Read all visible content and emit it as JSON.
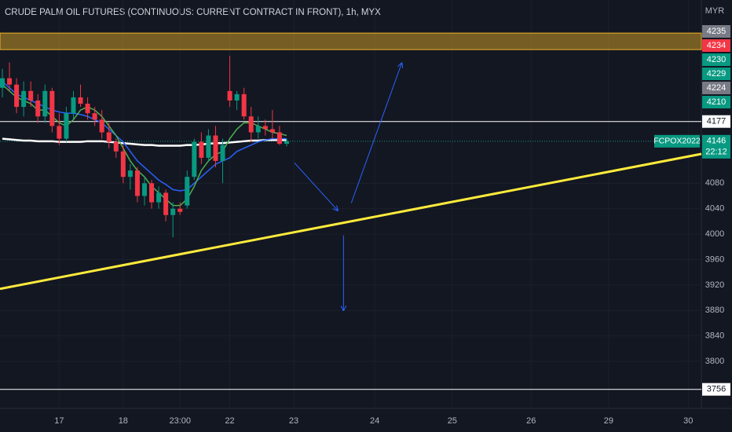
{
  "chart_data": {
    "type": "candlestick",
    "title": "CRUDE PALM OIL FUTURES (CONTINUOUS: CURRENT CONTRACT IN FRONT), 1h, MYX",
    "currency": "MYR",
    "symbol": "FCPOX2022",
    "countdown": "22:12",
    "x": [
      0,
      1,
      2,
      3,
      4,
      5,
      6,
      7,
      8,
      9,
      10,
      11,
      12,
      13,
      14,
      15,
      16,
      17,
      18,
      19,
      20,
      21,
      22,
      23,
      24,
      25,
      26,
      27,
      28,
      29,
      30,
      31,
      32,
      33,
      34,
      35,
      36,
      37,
      38,
      39,
      40
    ],
    "open": [
      4230,
      4245,
      4235,
      4200,
      4225,
      4210,
      4185,
      4225,
      4170,
      4150,
      4190,
      4215,
      4205,
      4190,
      4180,
      4160,
      4145,
      4130,
      4090,
      4100,
      4060,
      4080,
      4050,
      4065,
      4030,
      4040,
      4045,
      4090,
      4145,
      4120,
      4155,
      4115,
      4225,
      4210,
      4220,
      4185,
      4160,
      4170,
      4165,
      4160,
      4142
    ],
    "high": [
      4260,
      4270,
      4245,
      4240,
      4240,
      4220,
      4235,
      4230,
      4190,
      4200,
      4225,
      4235,
      4215,
      4200,
      4195,
      4175,
      4150,
      4140,
      4110,
      4105,
      4090,
      4085,
      4075,
      4070,
      4050,
      4050,
      4100,
      4150,
      4160,
      4165,
      4170,
      4150,
      4280,
      4225,
      4230,
      4200,
      4185,
      4180,
      4195,
      4170,
      4150
    ],
    "low": [
      4215,
      4225,
      4190,
      4185,
      4200,
      4175,
      4175,
      4160,
      4140,
      4145,
      4180,
      4200,
      4180,
      4170,
      4150,
      4135,
      4120,
      4080,
      4070,
      4050,
      4045,
      4040,
      4040,
      4020,
      3995,
      4030,
      4040,
      4085,
      4110,
      4115,
      4105,
      4080,
      4200,
      4195,
      4180,
      4145,
      4150,
      4155,
      4150,
      4140,
      4138
    ],
    "close": [
      4245,
      4235,
      4200,
      4225,
      4210,
      4185,
      4225,
      4170,
      4150,
      4190,
      4215,
      4205,
      4190,
      4180,
      4160,
      4145,
      4130,
      4090,
      4100,
      4060,
      4080,
      4050,
      4065,
      4030,
      4040,
      4035,
      4090,
      4145,
      4120,
      4155,
      4115,
      4140,
      4210,
      4220,
      4185,
      4160,
      4170,
      4165,
      4160,
      4142,
      4146
    ],
    "up_color": "#089981",
    "down_color": "#f23645",
    "series": [
      {
        "color": "#ffffff",
        "values": [
          4150,
          4149,
          4148,
          4147,
          4147,
          4146,
          4146,
          4146,
          4145,
          4145,
          4145,
          4145,
          4146,
          4146,
          4146,
          4145,
          4144,
          4143,
          4142,
          4141,
          4140,
          4140,
          4139,
          4139,
          4139,
          4139,
          4140,
          4140,
          4141,
          4142,
          4143,
          4143,
          4144,
          4145,
          4146,
          4147,
          4147,
          4148,
          4148,
          4148,
          4148
        ]
      },
      {
        "color": "#2962ff",
        "values": [
          4240,
          4230,
          4220,
          4215,
          4210,
          4205,
          4200,
          4195,
          4192,
          4190,
          4190,
          4188,
          4185,
          4180,
          4175,
          4165,
          4155,
          4145,
          4130,
          4115,
          4105,
          4095,
          4085,
          4078,
          4070,
          4068,
          4070,
          4080,
          4090,
          4100,
          4110,
          4115,
          4120,
          4130,
          4135,
          4140,
          4145,
          4148,
          4150,
          4150,
          4150
        ]
      },
      {
        "color": "#4caf50",
        "values": [
          4235,
          4225,
          4215,
          4210,
          4205,
          4195,
          4195,
          4185,
          4175,
          4170,
          4180,
          4195,
          4200,
          4195,
          4185,
          4170,
          4155,
          4135,
          4115,
          4100,
          4090,
          4075,
          4065,
          4055,
          4045,
          4045,
          4055,
          4075,
          4100,
          4115,
          4125,
          4130,
          4150,
          4165,
          4175,
          4175,
          4170,
          4165,
          4160,
          4158,
          4155
        ]
      }
    ],
    "xlim": [
      -0.33,
      98.35
    ],
    "ylim": [
      3726,
      4368
    ],
    "yticks": [
      3800,
      3840,
      3880,
      3920,
      3960,
      4000,
      4040,
      4080
    ],
    "xticks": [
      {
        "value": 8,
        "label": "17"
      },
      {
        "value": 17,
        "label": "18"
      },
      {
        "value": 25,
        "label": "23:00"
      },
      {
        "value": 32,
        "label": "22"
      },
      {
        "value": 41,
        "label": "23"
      },
      {
        "value": 52.4,
        "label": "24"
      },
      {
        "value": 63.3,
        "label": "25"
      },
      {
        "value": 74.4,
        "label": "26"
      },
      {
        "value": 85.3,
        "label": "29"
      },
      {
        "value": 96.5,
        "label": "30"
      }
    ],
    "grid": true,
    "zone": {
      "low": 4290,
      "high": 4316,
      "color": "#f0b429"
    },
    "hlines": [
      {
        "value": 4177
      },
      {
        "value": 3756
      }
    ],
    "last_price": 4146,
    "trendline": {
      "color": "#ffeb3b",
      "x": [
        -0.33,
        98.35
      ],
      "y": [
        3914,
        4126
      ]
    },
    "arrows": [
      {
        "x": [
          41.1,
          47.2
        ],
        "y": [
          4112,
          4037
        ]
      },
      {
        "x": [
          49.1,
          56.2
        ],
        "y": [
          4049,
          4269
        ]
      },
      {
        "x": [
          48.0,
          48.0
        ],
        "y": [
          3998,
          3880
        ]
      }
    ],
    "price_labels": [
      {
        "value": 4235,
        "color": "#787b86"
      },
      {
        "value": 4234,
        "color": "#f23645"
      },
      {
        "value": 4230,
        "color": "#089981"
      },
      {
        "value": 4229,
        "color": "#089981"
      },
      {
        "value": 4224,
        "color": "#787b86"
      },
      {
        "value": 4210,
        "color": "#089981"
      }
    ]
  }
}
